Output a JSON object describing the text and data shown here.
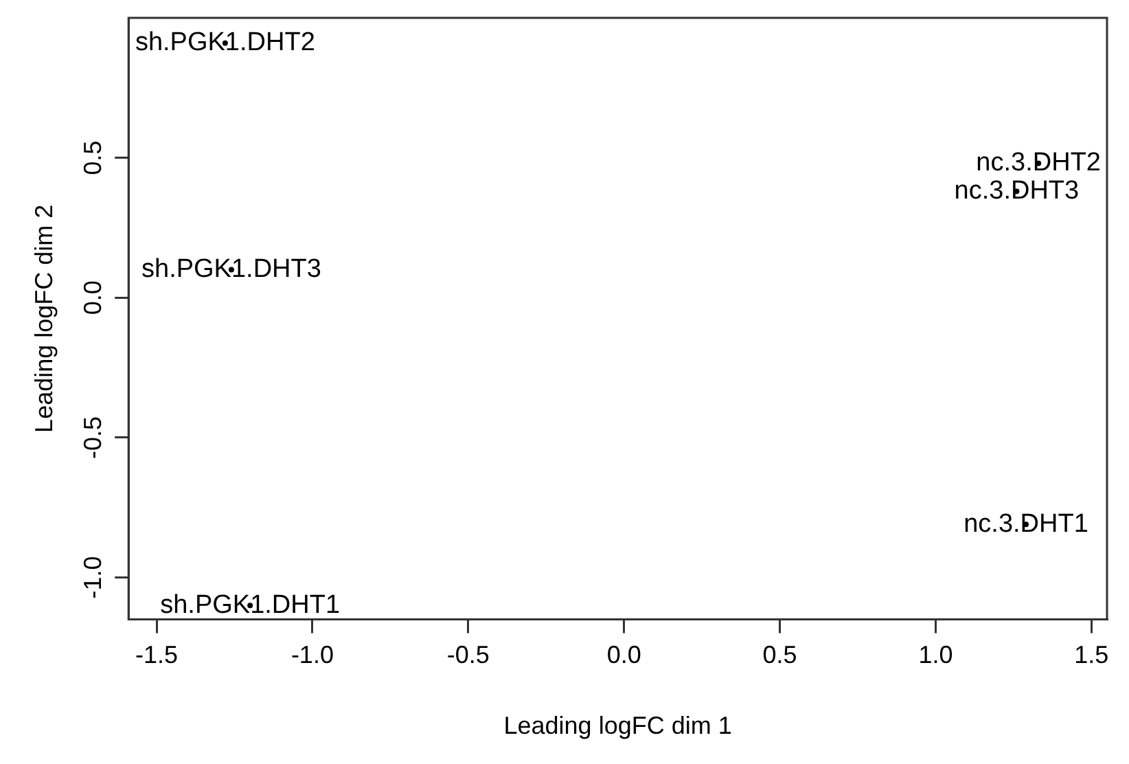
{
  "chart_data": {
    "type": "scatter",
    "xlabel": "Leading logFC dim 1",
    "ylabel": "Leading logFC dim 2",
    "xlim": [
      -1.59,
      1.55
    ],
    "ylim": [
      -1.15,
      1.0
    ],
    "xticks": [
      {
        "value": -1.5,
        "label": "-1.5"
      },
      {
        "value": -1,
        "label": "-1.0"
      },
      {
        "value": -0.5,
        "label": "-0.5"
      },
      {
        "value": 0,
        "label": "0.0"
      },
      {
        "value": 0.5,
        "label": "0.5"
      },
      {
        "value": 1,
        "label": "1.0"
      },
      {
        "value": 1.5,
        "label": "1.5"
      }
    ],
    "yticks": [
      {
        "value": -1,
        "label": "-1.0"
      },
      {
        "value": -0.5,
        "label": "-0.5"
      },
      {
        "value": 0,
        "label": "0.0"
      },
      {
        "value": 0.5,
        "label": "0.5"
      }
    ],
    "grid": false,
    "marker": "circle",
    "series": [
      {
        "color": "#000000",
        "x": [
          -1.2,
          -1.28,
          -1.26,
          1.29,
          1.33,
          1.26
        ],
        "values": [
          -1.1,
          0.91,
          0.1,
          -0.81,
          0.48,
          0.38
        ],
        "value_labels": [
          "sh.PGK1.DHT1",
          "sh.PGK1.DHT2",
          "sh.PGK1.DHT3",
          "nc.3.DHT1",
          "nc.3.DHT2",
          "nc.3.DHT3"
        ]
      }
    ]
  }
}
